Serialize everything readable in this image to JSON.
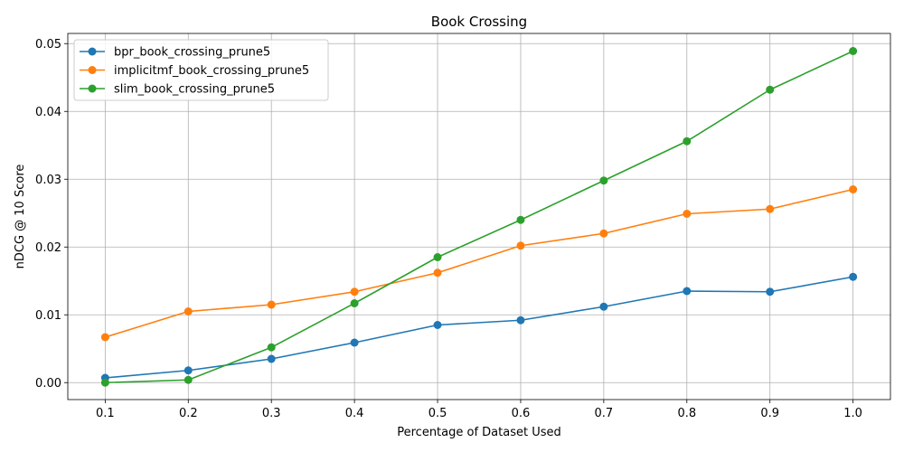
{
  "chart_data": {
    "type": "line",
    "title": "Book Crossing",
    "xlabel": "Percentage of Dataset Used",
    "ylabel": "nDCG @ 10 Score",
    "x": [
      0.1,
      0.2,
      0.3,
      0.4,
      0.5,
      0.6,
      0.7,
      0.8,
      0.9,
      1.0
    ],
    "x_tick_labels": [
      "0.1",
      "0.2",
      "0.3",
      "0.4",
      "0.5",
      "0.6",
      "0.7",
      "0.8",
      "0.9",
      "1.0"
    ],
    "y_ticks": [
      0.0,
      0.01,
      0.02,
      0.03,
      0.04,
      0.05
    ],
    "y_tick_labels": [
      "0.00",
      "0.01",
      "0.02",
      "0.03",
      "0.04",
      "0.05"
    ],
    "xlim": [
      0.055,
      1.045
    ],
    "ylim": [
      -0.0025,
      0.0515
    ],
    "grid": true,
    "legend_position": "top-left",
    "series": [
      {
        "name": "bpr_book_crossing_prune5",
        "color": "#1f77b4",
        "marker": "circle",
        "values": [
          0.0007,
          0.0018,
          0.0035,
          0.0059,
          0.0085,
          0.0092,
          0.0112,
          0.0135,
          0.0134,
          0.0156
        ]
      },
      {
        "name": "implicitmf_book_crossing_prune5",
        "color": "#ff7f0e",
        "marker": "circle",
        "values": [
          0.0067,
          0.0105,
          0.0115,
          0.0134,
          0.0162,
          0.0202,
          0.022,
          0.0249,
          0.0256,
          0.0285
        ]
      },
      {
        "name": "slim_book_crossing_prune5",
        "color": "#2ca02c",
        "marker": "circle",
        "values": [
          0.0,
          0.0004,
          0.0052,
          0.0117,
          0.0185,
          0.024,
          0.0298,
          0.0356,
          0.0432,
          0.0489
        ]
      }
    ]
  }
}
